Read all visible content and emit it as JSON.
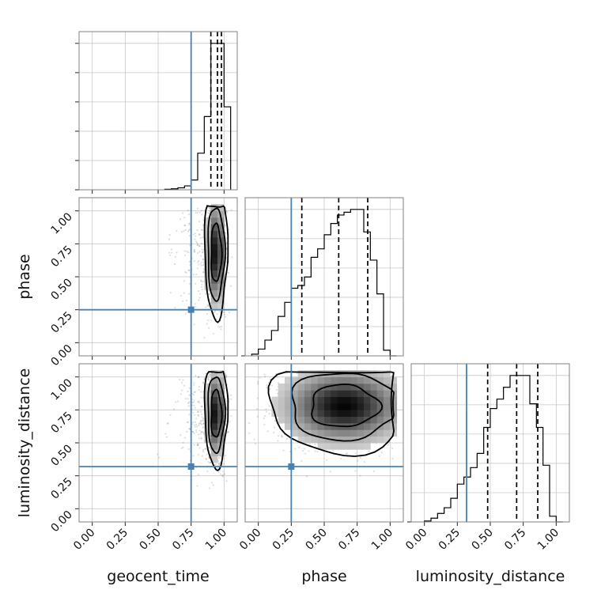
{
  "chart_data": {
    "type": "corner",
    "parameters": [
      "geocent_time",
      "phase",
      "luminosity_distance"
    ],
    "truths": {
      "geocent_time": 0.75,
      "phase": 0.25,
      "luminosity_distance": 0.32
    },
    "ticks": [
      0.0,
      0.25,
      0.5,
      0.75,
      1.0
    ],
    "tick_labels": [
      "0.00",
      "0.25",
      "0.50",
      "0.75",
      "1.00"
    ],
    "xlim": [
      -0.1,
      1.1
    ],
    "grid": true,
    "histograms": {
      "geocent_time": {
        "bin_edges": [
          0.55,
          0.6,
          0.65,
          0.7,
          0.75,
          0.8,
          0.85,
          0.9,
          0.95,
          1.0,
          1.05
        ],
        "counts": [
          1,
          2,
          4,
          8,
          20,
          75,
          150,
          300,
          300,
          170
        ],
        "quantiles": [
          0.9,
          0.95,
          0.98
        ]
      },
      "phase": {
        "bin_edges": [
          -0.05,
          0.0,
          0.05,
          0.1,
          0.15,
          0.2,
          0.25,
          0.3,
          0.35,
          0.4,
          0.45,
          0.5,
          0.55,
          0.6,
          0.65,
          0.7,
          0.75,
          0.8,
          0.85,
          0.9,
          0.95,
          1.0,
          1.05
        ],
        "counts": [
          3,
          12,
          28,
          45,
          70,
          95,
          120,
          125,
          140,
          175,
          190,
          215,
          235,
          250,
          255,
          260,
          260,
          220,
          170,
          110,
          10,
          0
        ],
        "quantiles": [
          0.33,
          0.61,
          0.83
        ]
      },
      "luminosity_distance": {
        "bin_edges": [
          0.0,
          0.05,
          0.1,
          0.15,
          0.2,
          0.25,
          0.3,
          0.35,
          0.4,
          0.45,
          0.5,
          0.55,
          0.6,
          0.65,
          0.7,
          0.75,
          0.8,
          0.85,
          0.9,
          0.95,
          1.0,
          1.05
        ],
        "counts": [
          2,
          8,
          18,
          30,
          50,
          80,
          95,
          115,
          145,
          200,
          240,
          260,
          285,
          310,
          310,
          310,
          250,
          200,
          120,
          12,
          0
        ],
        "quantiles": [
          0.48,
          0.7,
          0.86
        ]
      }
    },
    "panels_2d": [
      {
        "x": "geocent_time",
        "y": "phase",
        "center": [
          0.94,
          0.68
        ],
        "spread": [
          0.04,
          0.22
        ]
      },
      {
        "x": "geocent_time",
        "y": "luminosity_distance",
        "center": [
          0.94,
          0.72
        ],
        "spread": [
          0.04,
          0.18
        ]
      },
      {
        "x": "phase",
        "y": "luminosity_distance",
        "center": [
          0.65,
          0.78
        ],
        "spread": [
          0.26,
          0.16
        ]
      }
    ]
  }
}
